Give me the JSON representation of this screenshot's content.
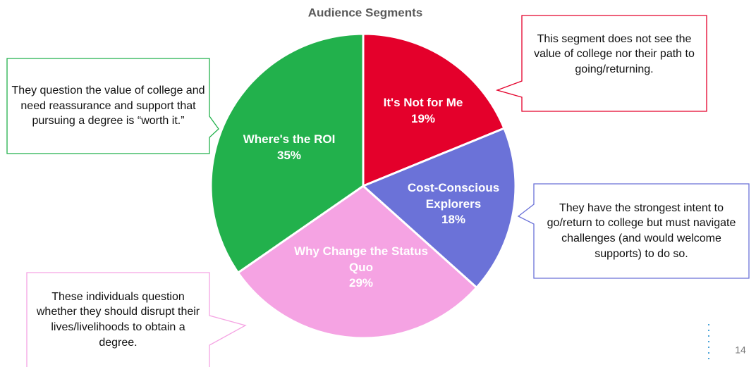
{
  "chart_data": {
    "type": "pie",
    "title": "Audience Segments",
    "categories": [
      "It's Not for Me",
      "Cost-Conscious Explorers",
      "Why Change the Status Quo",
      "Where's the ROI"
    ],
    "values": [
      19,
      18,
      29,
      35
    ],
    "value_labels": [
      "19%",
      "18%",
      "29%",
      "35%"
    ],
    "colors": [
      "#e4002b",
      "#6b72d8",
      "#f5a3e3",
      "#22b14c"
    ],
    "annotations": [
      "This segment does not see the value of college nor their path to going/returning.",
      "They have the strongest intent to go/return to college but must navigate challenges (and would welcome supports) to do so.",
      "These individuals question whether they should disrupt their lives/livelihoods to obtain a degree.",
      "They question the value of college and need reassurance and support that pursuing a degree is “worth it.”"
    ],
    "page_number": "14"
  }
}
